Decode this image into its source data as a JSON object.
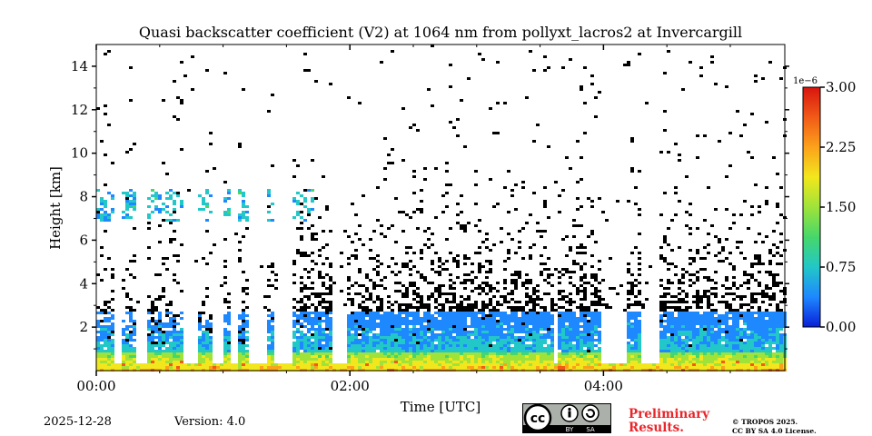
{
  "chart_data": {
    "type": "heatmap",
    "title": "Quasi backscatter coefficient (V2) at 1064 nm from pollyxt_lacros2 at Invercargill",
    "xlabel": "Time [UTC]",
    "ylabel": "Height [km]",
    "xlim_hours": [
      0.0,
      5.43
    ],
    "ylim_km": [
      0.0,
      15.0
    ],
    "x_ticks": [
      {
        "hour": 0,
        "label": "00:00"
      },
      {
        "hour": 2,
        "label": "02:00"
      },
      {
        "hour": 4,
        "label": "04:00"
      }
    ],
    "x_minor_ticks_hours": [
      0.5,
      1.0,
      1.5,
      2.5,
      3.0,
      3.5,
      4.5,
      5.0
    ],
    "y_ticks": [
      {
        "km": 2,
        "label": "2"
      },
      {
        "km": 4,
        "label": "4"
      },
      {
        "km": 6,
        "label": "6"
      },
      {
        "km": 8,
        "label": "8"
      },
      {
        "km": 10,
        "label": "10"
      },
      {
        "km": 12,
        "label": "12"
      },
      {
        "km": 14,
        "label": "14"
      }
    ],
    "colorbar": {
      "min": 0.0,
      "max": 3.0,
      "scale_label": "1e−6",
      "ticks": [
        {
          "value": 0.0,
          "label": "0.00"
        },
        {
          "value": 0.75,
          "label": "0.75"
        },
        {
          "value": 1.5,
          "label": "1.50"
        },
        {
          "value": 2.25,
          "label": "2.25"
        },
        {
          "value": 3.0,
          "label": "3.00"
        }
      ],
      "colors": [
        "#0a1fd8",
        "#1e88ff",
        "#22c7c8",
        "#46d76a",
        "#9fe33a",
        "#f2e71c",
        "#fba21b",
        "#f15a17",
        "#d8150f"
      ]
    },
    "features": {
      "surface_layer_top_km": 0.9,
      "boundary_layer_top_km": 2.8,
      "noise_top_km": 15.0,
      "residual_layer_km": [
        6.9,
        8.4
      ],
      "residual_layer_hours": [
        0.0,
        1.7
      ],
      "cloud_gaps_hours": [
        [
          0.12,
          0.19
        ],
        [
          0.31,
          0.38
        ],
        [
          0.66,
          0.8
        ],
        [
          0.91,
          0.98
        ],
        [
          1.05,
          1.1
        ],
        [
          1.2,
          1.32
        ],
        [
          1.4,
          1.52
        ],
        [
          1.85,
          1.96
        ],
        [
          3.6,
          3.62
        ],
        [
          3.98,
          4.18
        ],
        [
          4.28,
          4.42
        ]
      ]
    }
  },
  "footer": {
    "date": "2025-12-28",
    "version": "Version: 4.0",
    "preliminary_line1": "Preliminary",
    "preliminary_line2": "Results.",
    "copyright_line1": "© TROPOS 2025.",
    "copyright_line2": "CC BY SA 4.0 License.",
    "cc_label": "cc",
    "by_label": "BY",
    "sa_label": "SA"
  }
}
